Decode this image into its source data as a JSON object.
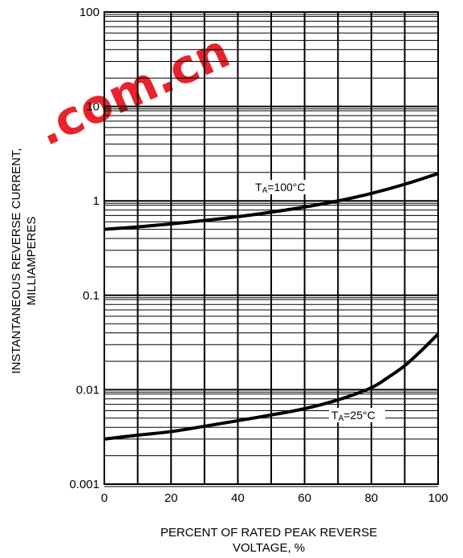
{
  "watermark": {
    "text": ".com.cn",
    "color": "#e8101a"
  },
  "chart_data": {
    "type": "line",
    "title": "",
    "xlabel_lines": [
      "PERCENT OF RATED PEAK REVERSE",
      "VOLTAGE, %"
    ],
    "ylabel_lines": [
      "INSTANTANEOUS REVERSE CURRENT,",
      "MILLIAMPERES"
    ],
    "xlim": [
      0,
      100
    ],
    "ylim": [
      0.001,
      100
    ],
    "y_scale": "log",
    "grid": true,
    "x_ticks": [
      0,
      20,
      40,
      60,
      80,
      100
    ],
    "x_tick_labels": [
      "0",
      "20",
      "40",
      "60",
      "80",
      "100"
    ],
    "y_ticks": [
      0.001,
      0.01,
      0.1,
      1,
      10,
      100
    ],
    "y_tick_labels": [
      "0.001",
      "0.01",
      "0.1",
      "1",
      "10",
      "100"
    ],
    "series": [
      {
        "name": "TA=100°C",
        "label_main": "T",
        "label_sub": "A",
        "label_rest": "=100°C",
        "x": [
          0,
          10,
          20,
          30,
          40,
          50,
          60,
          70,
          80,
          90,
          100
        ],
        "y": [
          0.5,
          0.53,
          0.57,
          0.62,
          0.68,
          0.76,
          0.86,
          1.0,
          1.2,
          1.5,
          1.95
        ]
      },
      {
        "name": "TA=25°C",
        "label_main": "T",
        "label_sub": "A",
        "label_rest": "=25°C",
        "x": [
          0,
          10,
          20,
          30,
          40,
          50,
          60,
          70,
          80,
          85,
          90,
          95,
          100
        ],
        "y": [
          0.003,
          0.0033,
          0.0036,
          0.0041,
          0.0047,
          0.0054,
          0.0063,
          0.0078,
          0.0105,
          0.0135,
          0.018,
          0.026,
          0.039
        ]
      }
    ]
  }
}
